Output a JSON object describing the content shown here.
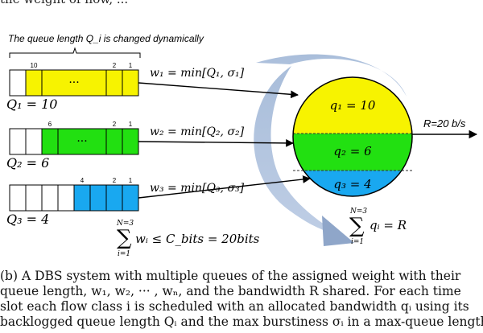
{
  "top_text": "the weight of flow, ...",
  "header_note": "The queue length Q_i is changed dynamically",
  "queues": [
    {
      "label": "Q₁ = 10",
      "color": "#f7f300",
      "slots_filled": 10,
      "slot_labels": [
        "10",
        "2",
        "1"
      ],
      "ellipsis": "···",
      "weight": "w₁ = min[Q₁, σ₁]"
    },
    {
      "label": "Q₂ = 6",
      "color": "#22e011",
      "slots_filled": 6,
      "slot_labels": [
        "6",
        "2",
        "1"
      ],
      "ellipsis": "···",
      "weight": "w₂ = min[Q₂, σ₂]"
    },
    {
      "label": "Q₃ = 4",
      "color": "#19a8f0",
      "slots_filled": 4,
      "slot_labels": [
        "4",
        "2",
        "1"
      ],
      "ellipsis": "",
      "weight": "w₃ = min[Q₃, σ₃]"
    }
  ],
  "server": {
    "segments": [
      {
        "label": "q₁ = 10",
        "color": "#f7f300"
      },
      {
        "label": "q₂ = 6",
        "color": "#22e011"
      },
      {
        "label": "q₃ = 4",
        "color": "#19a8f0"
      }
    ],
    "rate": "R=20 b/s"
  },
  "sum_left": {
    "top": "N=3",
    "bottom": "i=1",
    "expr": "wᵢ ≤ C_bits = 20bits"
  },
  "sum_right": {
    "top": "N=3",
    "bottom": "i=1",
    "expr": "qᵢ = R"
  },
  "caption_lines": [
    "(b)  A DBS system with multiple queues of the assigned weight with their",
    "queue length, w₁, w₂, ··· , wₙ, and the bandwidth R shared. For each time",
    "slot each flow class i is scheduled with an allocated bandwidth qᵢ using its",
    "backlogged queue length Qᵢ and the max burstiness σᵢ in a max-queue length"
  ]
}
